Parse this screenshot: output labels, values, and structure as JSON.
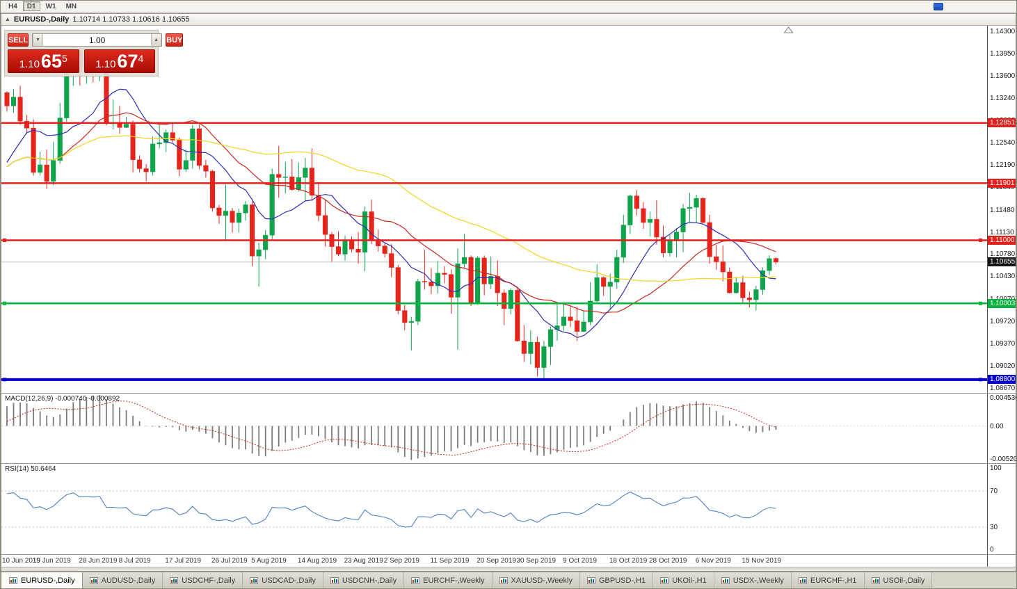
{
  "toolbar": {
    "timeframes": [
      "H4",
      "D1",
      "W1",
      "MN"
    ],
    "active": "D1"
  },
  "window_title": {
    "symbol": "EURUSD-,Daily",
    "ohlc": "1.10714 1.10733 1.10616 1.10655"
  },
  "icons": {
    "titlebar_chart": "▲",
    "volume_up": "▲",
    "volume_down": "▼"
  },
  "trade_panel": {
    "sell_label": "SELL",
    "buy_label": "BUY",
    "volume": "1.00",
    "sell_price": {
      "prefix": "1.10",
      "big": "65",
      "pip": "5"
    },
    "buy_price": {
      "prefix": "1.10",
      "big": "67",
      "pip": "4"
    }
  },
  "chart_data": {
    "type": "candlestick",
    "symbol": "EURUSD-",
    "timeframe": "Daily",
    "current_bar": {
      "open": "1.10714",
      "high": "1.10733",
      "low": "1.10616",
      "close": "1.10655"
    },
    "y_axis": {
      "min": 1.0859,
      "max": 1.14386,
      "ticks": [
        "1.14300",
        "1.13950",
        "1.13600",
        "1.13240",
        "1.12890",
        "1.12540",
        "1.12190",
        "1.11840",
        "1.11480",
        "1.11130",
        "1.10780",
        "1.10430",
        "1.10070",
        "1.09720",
        "1.09370",
        "1.09020",
        "1.08670"
      ]
    },
    "x_axis": {
      "start_date": "10 Jun 2019",
      "ticks": [
        {
          "label": "10 Jun 2019",
          "i": 0
        },
        {
          "label": "19 Jun 2019",
          "i": 7
        },
        {
          "label": "28 Jun 2019",
          "i": 14
        },
        {
          "label": "8 Jul 2019",
          "i": 20
        },
        {
          "label": "17 Jul 2019",
          "i": 27
        },
        {
          "label": "26 Jul 2019",
          "i": 34
        },
        {
          "label": "5 Aug 2019",
          "i": 40
        },
        {
          "label": "14 Aug 2019",
          "i": 47
        },
        {
          "label": "23 Aug 2019",
          "i": 54
        },
        {
          "label": "2 Sep 2019",
          "i": 60
        },
        {
          "label": "11 Sep 2019",
          "i": 67
        },
        {
          "label": "20 Sep 2019",
          "i": 74
        },
        {
          "label": "30 Sep 2019",
          "i": 80
        },
        {
          "label": "9 Oct 2019",
          "i": 87
        },
        {
          "label": "18 Oct 2019",
          "i": 94
        },
        {
          "label": "28 Oct 2019",
          "i": 100
        },
        {
          "label": "6 Nov 2019",
          "i": 107
        },
        {
          "label": "15 Nov 2019",
          "i": 114
        }
      ]
    },
    "levels": [
      {
        "price": 1.12851,
        "label": "1.12851",
        "color": "#e2211c",
        "width": 2.5,
        "handles": false
      },
      {
        "price": 1.11901,
        "label": "1.11901",
        "color": "#e2211c",
        "width": 2.5,
        "handles": false
      },
      {
        "price": 1.11,
        "label": "1.11000",
        "color": "#e2211c",
        "width": 2.5,
        "handles": true
      },
      {
        "price": 1.10003,
        "label": "1.10003",
        "color": "#00b43c",
        "width": 2.5,
        "handles": true
      },
      {
        "price": 1.088,
        "label": "1.08800",
        "color": "#0504c8",
        "width": 4,
        "handles": true
      }
    ],
    "current_price": {
      "value": 1.10655,
      "label": "1.10655",
      "line_color": "#c2c2c2",
      "badge_color": "#141414"
    },
    "colors": {
      "bull": "#0fa44c",
      "bear": "#e5251c",
      "ma_fast": "#2d2db4",
      "ma_mid": "#c8281e",
      "ma_slow": "#f0d51e"
    },
    "moving_averages": [
      {
        "period": 10,
        "color_key": "ma_fast"
      },
      {
        "period": 21,
        "color_key": "ma_mid"
      },
      {
        "period": 50,
        "color_key": "ma_slow"
      }
    ],
    "preceding_closes": [
      1.1182,
      1.1202,
      1.1194,
      1.1161,
      1.1134,
      1.1127,
      1.1168,
      1.1242,
      1.1253,
      1.1222,
      1.1277,
      1.1333
    ],
    "candles": [
      [
        1.1333,
        1.1335,
        1.1303,
        1.1312
      ],
      [
        1.1312,
        1.1338,
        1.1301,
        1.1326
      ],
      [
        1.1326,
        1.1344,
        1.1282,
        1.1288
      ],
      [
        1.1288,
        1.1298,
        1.1268,
        1.1277
      ],
      [
        1.1277,
        1.1291,
        1.1202,
        1.1207
      ],
      [
        1.1207,
        1.124,
        1.1202,
        1.1219
      ],
      [
        1.1219,
        1.1243,
        1.1181,
        1.1193
      ],
      [
        1.1193,
        1.1255,
        1.1187,
        1.1226
      ],
      [
        1.1226,
        1.1317,
        1.1221,
        1.1293
      ],
      [
        1.1293,
        1.1378,
        1.1287,
        1.1368
      ],
      [
        1.1368,
        1.1406,
        1.1344,
        1.1399
      ],
      [
        1.1399,
        1.1412,
        1.1344,
        1.1366
      ],
      [
        1.1366,
        1.1391,
        1.1347,
        1.1371
      ],
      [
        1.1371,
        1.1388,
        1.1349,
        1.1367
      ],
      [
        1.1367,
        1.1394,
        1.1351,
        1.1373
      ],
      [
        1.1373,
        1.1376,
        1.1281,
        1.1285
      ],
      [
        1.1285,
        1.1322,
        1.1275,
        1.1285
      ],
      [
        1.1285,
        1.1312,
        1.1268,
        1.1278
      ],
      [
        1.1278,
        1.1295,
        1.1277,
        1.1283
      ],
      [
        1.1283,
        1.1289,
        1.1207,
        1.1227
      ],
      [
        1.1227,
        1.1234,
        1.1207,
        1.1213
      ],
      [
        1.1213,
        1.122,
        1.1193,
        1.1208
      ],
      [
        1.1208,
        1.1264,
        1.1202,
        1.1252
      ],
      [
        1.1252,
        1.1286,
        1.1245,
        1.1254
      ],
      [
        1.1254,
        1.1275,
        1.1239,
        1.127
      ],
      [
        1.127,
        1.1284,
        1.1254,
        1.1258
      ],
      [
        1.1258,
        1.1262,
        1.1201,
        1.1212
      ],
      [
        1.1212,
        1.1243,
        1.1208,
        1.1226
      ],
      [
        1.1226,
        1.1282,
        1.1213,
        1.1276
      ],
      [
        1.1276,
        1.1283,
        1.1212,
        1.1218
      ],
      [
        1.1218,
        1.1227,
        1.1199,
        1.1209
      ],
      [
        1.1209,
        1.1211,
        1.1145,
        1.1151
      ],
      [
        1.1151,
        1.1156,
        1.1126,
        1.1139
      ],
      [
        1.1139,
        1.1188,
        1.1101,
        1.1146
      ],
      [
        1.1146,
        1.1151,
        1.1112,
        1.1128
      ],
      [
        1.1128,
        1.115,
        1.1112,
        1.1143
      ],
      [
        1.1143,
        1.1162,
        1.1131,
        1.1156
      ],
      [
        1.1156,
        1.1162,
        1.1059,
        1.1075
      ],
      [
        1.1075,
        1.1096,
        1.1027,
        1.1085
      ],
      [
        1.1085,
        1.1116,
        1.107,
        1.1108
      ],
      [
        1.1108,
        1.1213,
        1.1101,
        1.1204
      ],
      [
        1.1204,
        1.1249,
        1.1167,
        1.1199
      ],
      [
        1.1199,
        1.1224,
        1.1174,
        1.12
      ],
      [
        1.12,
        1.1228,
        1.1178,
        1.118
      ],
      [
        1.118,
        1.1223,
        1.1177,
        1.1199
      ],
      [
        1.1199,
        1.123,
        1.1162,
        1.1214
      ],
      [
        1.1214,
        1.1245,
        1.1162,
        1.1171
      ],
      [
        1.1171,
        1.1192,
        1.113,
        1.1139
      ],
      [
        1.1139,
        1.1163,
        1.109,
        1.1109
      ],
      [
        1.1109,
        1.1113,
        1.1066,
        1.109
      ],
      [
        1.109,
        1.1114,
        1.1075,
        1.1078
      ],
      [
        1.1078,
        1.1107,
        1.1068,
        1.1099
      ],
      [
        1.1099,
        1.1106,
        1.1081,
        1.1086
      ],
      [
        1.1086,
        1.1113,
        1.1063,
        1.1081
      ],
      [
        1.1081,
        1.1153,
        1.1051,
        1.1145
      ],
      [
        1.1145,
        1.1164,
        1.1094,
        1.1101
      ],
      [
        1.1101,
        1.1117,
        1.1082,
        1.1091
      ],
      [
        1.1091,
        1.1095,
        1.1073,
        1.1079
      ],
      [
        1.1079,
        1.1094,
        1.1042,
        1.1057
      ],
      [
        1.1057,
        1.1061,
        1.0983,
        1.0989
      ],
      [
        1.0989,
        1.0998,
        1.0958,
        1.097
      ],
      [
        1.097,
        1.0979,
        1.0926,
        1.0972
      ],
      [
        1.0972,
        1.1039,
        1.0966,
        1.1035
      ],
      [
        1.1035,
        1.1085,
        1.1022,
        1.1034
      ],
      [
        1.1034,
        1.1056,
        1.1015,
        1.1028
      ],
      [
        1.1028,
        1.1067,
        1.1016,
        1.1048
      ],
      [
        1.1048,
        1.1059,
        1.1032,
        1.1046
      ],
      [
        1.1046,
        1.1054,
        1.0984,
        1.101
      ],
      [
        1.101,
        1.1087,
        1.0927,
        1.1063
      ],
      [
        1.1063,
        1.111,
        1.1055,
        1.1073
      ],
      [
        1.1073,
        1.1076,
        1.0996,
        1.1002
      ],
      [
        1.1002,
        1.1075,
        1.0998,
        1.1072
      ],
      [
        1.1072,
        1.1076,
        1.1013,
        1.1031
      ],
      [
        1.1031,
        1.1074,
        1.1023,
        1.1043
      ],
      [
        1.1043,
        1.1068,
        1.0996,
        1.1017
      ],
      [
        1.1017,
        1.1022,
        1.0966,
        1.0992
      ],
      [
        1.0992,
        1.1024,
        1.0983,
        1.1021
      ],
      [
        1.1021,
        1.1024,
        1.094,
        1.0941
      ],
      [
        1.0941,
        1.0966,
        1.0908,
        1.0921
      ],
      [
        1.0921,
        1.0958,
        1.0904,
        1.0939
      ],
      [
        1.0939,
        1.0948,
        1.0885,
        1.0899
      ],
      [
        1.0899,
        1.0941,
        1.0879,
        1.0932
      ],
      [
        1.0932,
        1.0964,
        1.0903,
        1.0959
      ],
      [
        1.0959,
        1.0999,
        1.0941,
        1.0965
      ],
      [
        1.0965,
        1.0999,
        1.0957,
        1.0979
      ],
      [
        1.0979,
        1.0996,
        1.0963,
        1.0973
      ],
      [
        1.0973,
        1.0995,
        1.0941,
        1.0956
      ],
      [
        1.0956,
        1.0988,
        1.0955,
        1.0971
      ],
      [
        1.0971,
        1.1034,
        1.0966,
        1.1004
      ],
      [
        1.1004,
        1.1062,
        1.1002,
        1.1041
      ],
      [
        1.1041,
        1.1043,
        1.1012,
        1.1027
      ],
      [
        1.1027,
        1.1047,
        1.0991,
        1.1034
      ],
      [
        1.1034,
        1.1085,
        1.1023,
        1.1073
      ],
      [
        1.1073,
        1.114,
        1.1064,
        1.1124
      ],
      [
        1.1124,
        1.1172,
        1.111,
        1.117
      ],
      [
        1.117,
        1.1179,
        1.1139,
        1.115
      ],
      [
        1.115,
        1.116,
        1.1118,
        1.1128
      ],
      [
        1.1128,
        1.1145,
        1.1106,
        1.1133
      ],
      [
        1.1133,
        1.1163,
        1.1093,
        1.1105
      ],
      [
        1.1105,
        1.1123,
        1.1073,
        1.108
      ],
      [
        1.108,
        1.1108,
        1.1074,
        1.1099
      ],
      [
        1.1099,
        1.1119,
        1.1073,
        1.1113
      ],
      [
        1.1113,
        1.1157,
        1.1081,
        1.115
      ],
      [
        1.115,
        1.1175,
        1.1129,
        1.1152
      ],
      [
        1.1152,
        1.1172,
        1.1128,
        1.1166
      ],
      [
        1.1166,
        1.1168,
        1.1125,
        1.1128
      ],
      [
        1.1128,
        1.114,
        1.1063,
        1.1074
      ],
      [
        1.1074,
        1.1093,
        1.1053,
        1.1066
      ],
      [
        1.1066,
        1.1092,
        1.1035,
        1.105
      ],
      [
        1.105,
        1.1057,
        1.1016,
        1.1017
      ],
      [
        1.1017,
        1.1042,
        1.1016,
        1.1033
      ],
      [
        1.1033,
        1.1044,
        1.1002,
        1.1009
      ],
      [
        1.1009,
        1.1019,
        1.0994,
        1.1006
      ],
      [
        1.1006,
        1.1028,
        1.0989,
        1.1022
      ],
      [
        1.1022,
        1.1057,
        1.1014,
        1.1052
      ],
      [
        1.1052,
        1.1076,
        1.1045,
        1.1071
      ],
      [
        1.10714,
        1.10733,
        1.10616,
        1.10655
      ]
    ],
    "macd": {
      "label": "MACD(12,26,9) -0.000740 -0.000892",
      "params": [
        12,
        26,
        9
      ],
      "values_text": [
        "-0.000740",
        "-0.000892"
      ],
      "axis_ticks": [
        "0.004536",
        "0.00",
        "-0.0052050"
      ],
      "scale_max": 0.004536,
      "scale_min": -0.005205,
      "bar_color": "#7b7b7b",
      "signal_color": "#d02318"
    },
    "rsi": {
      "label": "RSI(14) 50.6464",
      "period": 14,
      "value_text": "50.6464",
      "axis_ticks": [
        "100",
        "70",
        "30",
        "0"
      ],
      "levels": [
        70,
        30
      ],
      "line_color": "#4f7fbe",
      "level_color": "#c4c4c4"
    }
  },
  "tabs": {
    "items": [
      {
        "label": "EURUSD-,Daily",
        "active": true
      },
      {
        "label": "AUDUSD-,Daily",
        "active": false
      },
      {
        "label": "USDCHF-,Daily",
        "active": false
      },
      {
        "label": "USDCAD-,Daily",
        "active": false
      },
      {
        "label": "USDCNH-,Daily",
        "active": false
      },
      {
        "label": "EURCHF-,Weekly",
        "active": false
      },
      {
        "label": "XAUUSD-,Weekly",
        "active": false
      },
      {
        "label": "GBPUSD-,H1",
        "active": false
      },
      {
        "label": "UKOil-,H1",
        "active": false
      },
      {
        "label": "USDX-,Weekly",
        "active": false
      },
      {
        "label": "EURCHF-,H1",
        "active": false
      },
      {
        "label": "USOil-,Daily",
        "active": false
      }
    ]
  }
}
